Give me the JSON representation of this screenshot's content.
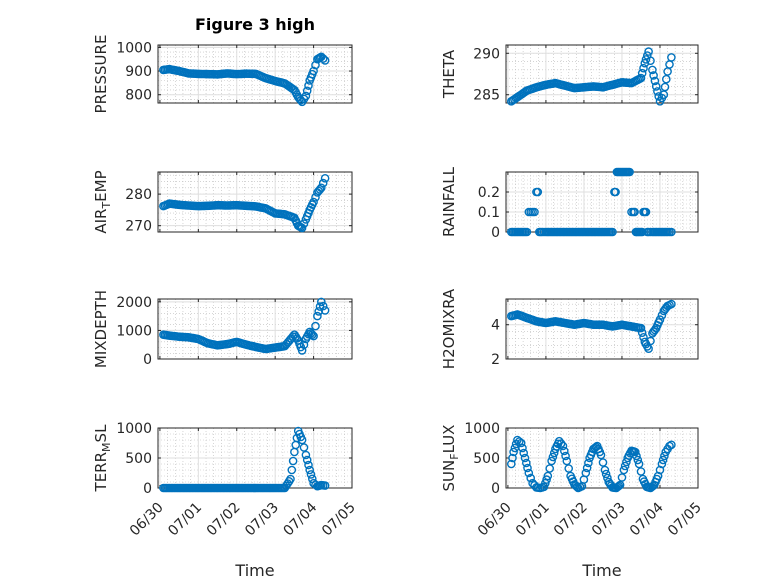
{
  "figure": {
    "title": "Figure 3 high",
    "marker_color": "#0072BD"
  },
  "chart_data": [
    {
      "type": "scatter",
      "name": "pressure",
      "ylabel": "PRESSURE",
      "xlabel": "",
      "ylim": [
        765,
        1010
      ],
      "yticks": [
        800,
        900,
        1000
      ],
      "ytick_labels": [
        "800",
        "900",
        "1000"
      ],
      "x": [
        0.09,
        0.25,
        0.5,
        0.75,
        1.0,
        1.25,
        1.5,
        1.75,
        2.0,
        2.25,
        2.5,
        2.75,
        3.0,
        3.25,
        3.5,
        3.6,
        3.7,
        3.8,
        3.9,
        4.0,
        4.1,
        4.2,
        4.3
      ],
      "y": [
        905,
        908,
        900,
        890,
        888,
        887,
        886,
        890,
        887,
        889,
        888,
        870,
        858,
        848,
        820,
        790,
        770,
        795,
        860,
        900,
        950,
        960,
        945
      ]
    },
    {
      "type": "scatter",
      "name": "theta",
      "ylabel": "THETA",
      "xlabel": "",
      "ylim": [
        284,
        291
      ],
      "yticks": [
        285,
        290
      ],
      "ytick_labels": [
        "285",
        "290"
      ],
      "x": [
        0.09,
        0.25,
        0.5,
        0.75,
        1.0,
        1.25,
        1.5,
        1.75,
        2.0,
        2.25,
        2.5,
        2.75,
        3.0,
        3.25,
        3.5,
        3.6,
        3.7,
        3.8,
        3.9,
        4.0,
        4.1,
        4.2,
        4.3
      ],
      "y": [
        284.2,
        284.7,
        285.5,
        285.9,
        286.2,
        286.4,
        286.1,
        285.8,
        285.9,
        286.0,
        285.9,
        286.2,
        286.5,
        286.4,
        287.0,
        288.8,
        290.2,
        288.0,
        286.0,
        284.2,
        285.0,
        287.8,
        289.5
      ]
    },
    {
      "type": "scatter",
      "name": "air-temp",
      "ylabel": "AIR_TEMP",
      "xlabel": "",
      "ylim": [
        268,
        287
      ],
      "yticks": [
        270,
        280
      ],
      "ytick_labels": [
        "270",
        "280"
      ],
      "x": [
        0.09,
        0.25,
        0.5,
        0.75,
        1.0,
        1.25,
        1.5,
        1.75,
        2.0,
        2.25,
        2.5,
        2.75,
        3.0,
        3.25,
        3.5,
        3.6,
        3.7,
        3.8,
        3.9,
        4.0,
        4.1,
        4.2,
        4.3
      ],
      "y": [
        276.2,
        277.0,
        276.6,
        276.4,
        276.2,
        276.3,
        276.5,
        276.4,
        276.5,
        276.3,
        276.1,
        275.5,
        273.9,
        273.6,
        272.5,
        270.0,
        269.3,
        272.0,
        275.0,
        277.5,
        280.5,
        282.0,
        285.0
      ]
    },
    {
      "type": "scatter",
      "name": "rainfall",
      "ylabel": "RAINFALL",
      "xlabel": "",
      "ylim": [
        0,
        0.3
      ],
      "yticks": [
        0,
        0.1,
        0.2
      ],
      "ytick_labels": [
        "0",
        "0.1",
        "0.2"
      ],
      "x": [
        0.09,
        0.25,
        0.5,
        0.6,
        0.7,
        0.75,
        0.9,
        1.0,
        1.5,
        2.0,
        2.5,
        2.75,
        2.8,
        2.9,
        3.0,
        3.1,
        3.2,
        3.3,
        3.4,
        3.5,
        3.6,
        3.7,
        3.8,
        4.0,
        4.2,
        4.3
      ],
      "y": [
        0,
        0,
        0,
        0.1,
        0.1,
        0.2,
        0,
        0,
        0,
        0,
        0,
        0,
        0.2,
        0.3,
        0.3,
        0.3,
        0.3,
        0.1,
        0,
        0,
        0.1,
        0,
        0,
        0,
        0,
        0
      ]
    },
    {
      "type": "scatter",
      "name": "mixdepth",
      "ylabel": "MIXDEPTH",
      "xlabel": "",
      "ylim": [
        0,
        2100
      ],
      "yticks": [
        0,
        1000,
        2000
      ],
      "ytick_labels": [
        "0",
        "1000",
        "2000"
      ],
      "x": [
        0.09,
        0.25,
        0.5,
        0.75,
        1.0,
        1.25,
        1.5,
        1.75,
        2.0,
        2.25,
        2.5,
        2.75,
        3.0,
        3.25,
        3.5,
        3.6,
        3.7,
        3.8,
        3.9,
        4.0,
        4.1,
        4.2,
        4.3
      ],
      "y": [
        850,
        820,
        780,
        760,
        700,
        550,
        480,
        520,
        600,
        500,
        420,
        350,
        400,
        450,
        850,
        650,
        300,
        700,
        950,
        800,
        1500,
        2000,
        1700
      ]
    },
    {
      "type": "scatter",
      "name": "h2omixra",
      "ylabel": "H2OMIXRA",
      "xlabel": "",
      "ylim": [
        2,
        5.5
      ],
      "yticks": [
        2,
        4
      ],
      "ytick_labels": [
        "2",
        "4"
      ],
      "x": [
        0.09,
        0.25,
        0.5,
        0.75,
        1.0,
        1.25,
        1.5,
        1.75,
        2.0,
        2.25,
        2.5,
        2.75,
        3.0,
        3.25,
        3.5,
        3.6,
        3.7,
        3.8,
        3.9,
        4.0,
        4.1,
        4.2,
        4.3
      ],
      "y": [
        4.5,
        4.6,
        4.4,
        4.2,
        4.1,
        4.2,
        4.1,
        4.0,
        4.1,
        4.0,
        4.0,
        3.9,
        4.0,
        3.9,
        3.8,
        3.0,
        2.6,
        3.5,
        3.8,
        4.3,
        4.8,
        5.1,
        5.2
      ]
    },
    {
      "type": "scatter",
      "name": "terr-msl",
      "ylabel": "TERR_MSL",
      "xlabel": "Time",
      "ylim": [
        0,
        1000
      ],
      "yticks": [
        0,
        500,
        1000
      ],
      "ytick_labels": [
        "0",
        "500",
        "1000"
      ],
      "x": [
        0.09,
        0.5,
        1.0,
        1.5,
        2.0,
        2.5,
        3.0,
        3.25,
        3.4,
        3.5,
        3.6,
        3.7,
        3.8,
        3.9,
        4.0,
        4.1,
        4.2,
        4.3
      ],
      "y": [
        0,
        0,
        0,
        0,
        0,
        0,
        0,
        0,
        150,
        600,
        950,
        800,
        550,
        300,
        80,
        30,
        50,
        40
      ]
    },
    {
      "type": "scatter",
      "name": "sun-flux",
      "ylabel": "SUN_FLUX",
      "xlabel": "Time",
      "ylim": [
        0,
        1000
      ],
      "yticks": [
        0,
        500,
        1000
      ],
      "ytick_labels": [
        "0",
        "500",
        "1000"
      ],
      "x": [
        0.09,
        0.15,
        0.25,
        0.35,
        0.45,
        0.55,
        0.65,
        0.75,
        0.85,
        0.95,
        1.05,
        1.15,
        1.25,
        1.35,
        1.45,
        1.55,
        1.65,
        1.75,
        1.85,
        1.95,
        2.05,
        2.15,
        2.25,
        2.35,
        2.45,
        2.55,
        2.65,
        2.75,
        2.85,
        2.95,
        3.05,
        3.15,
        3.25,
        3.35,
        3.45,
        3.55,
        3.65,
        3.75,
        3.85,
        3.95,
        4.05,
        4.15,
        4.25,
        4.3
      ],
      "y": [
        400,
        600,
        800,
        750,
        500,
        250,
        80,
        10,
        0,
        20,
        200,
        450,
        650,
        780,
        700,
        450,
        200,
        60,
        0,
        30,
        250,
        500,
        650,
        700,
        550,
        300,
        100,
        10,
        0,
        50,
        300,
        500,
        620,
        600,
        400,
        150,
        20,
        0,
        50,
        200,
        400,
        600,
        700,
        720
      ]
    }
  ],
  "x_axis": {
    "xlim": [
      -0.05,
      5.0
    ],
    "xticks": [
      0,
      1,
      2,
      3,
      4,
      5
    ],
    "xtick_labels": [
      "06/30",
      "07/01",
      "07/02",
      "07/03",
      "07/04",
      "07/05"
    ]
  }
}
